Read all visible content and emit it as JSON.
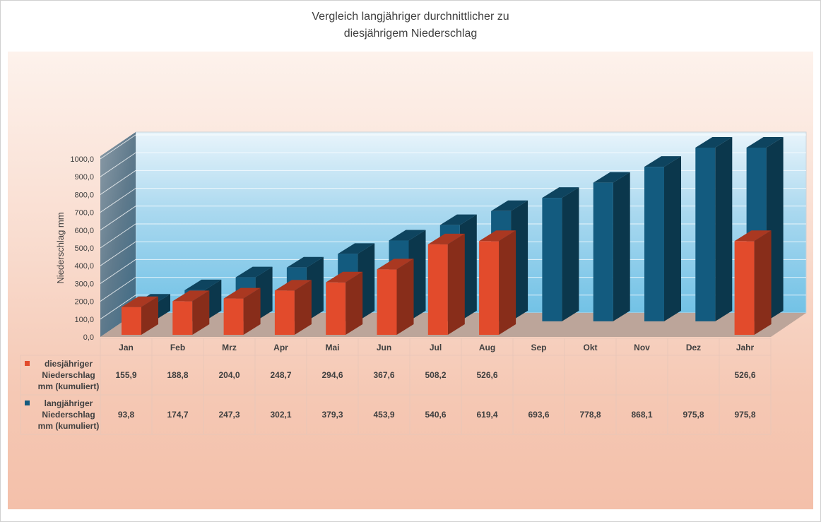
{
  "chart_data": {
    "type": "bar",
    "title_line1": "Vergleich langjähriger durchnittlicher zu",
    "title_line2": "diesjährigem Niederschlag",
    "ylabel": "Niederschlag mm",
    "ylim": [
      0,
      1000
    ],
    "yticks": [
      "0,0",
      "100,0",
      "200,0",
      "300,0",
      "400,0",
      "500,0",
      "600,0",
      "700,0",
      "800,0",
      "900,0",
      "1000,0"
    ],
    "categories": [
      "Jan",
      "Feb",
      "Mrz",
      "Apr",
      "Mai",
      "Jun",
      "Jul",
      "Aug",
      "Sep",
      "Okt",
      "Nov",
      "Dez",
      "Jahr"
    ],
    "series": [
      {
        "name_lines": [
          "diesjähriger",
          "Niederschlag",
          "mm (kumuliert)"
        ],
        "color": "#e24b2c",
        "values": [
          155.9,
          188.8,
          204.0,
          248.7,
          294.6,
          367.6,
          508.2,
          526.6,
          null,
          null,
          null,
          null,
          526.6
        ],
        "labels": [
          "155,9",
          "188,8",
          "204,0",
          "248,7",
          "294,6",
          "367,6",
          "508,2",
          "526,6",
          "",
          "",
          "",
          "",
          "526,6"
        ]
      },
      {
        "name_lines": [
          "langjähriger",
          "Niederschlag",
          "mm (kumuliert)"
        ],
        "color": "#135b7f",
        "values": [
          93.8,
          174.7,
          247.3,
          302.1,
          379.3,
          453.9,
          540.6,
          619.4,
          693.6,
          778.8,
          868.1,
          975.8,
          975.8
        ],
        "labels": [
          "93,8",
          "174,7",
          "247,3",
          "302,1",
          "379,3",
          "453,9",
          "540,6",
          "619,4",
          "693,6",
          "778,8",
          "868,1",
          "975,8",
          "975,8"
        ]
      }
    ],
    "grid": true,
    "legend": "table"
  }
}
